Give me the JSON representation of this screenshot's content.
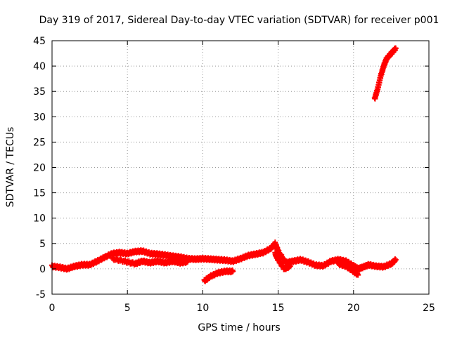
{
  "chart_data": {
    "type": "scatter",
    "title": "Day 319 of 2017, Sidereal Day-to-day VTEC variation (SDTVAR) for receiver p001",
    "xlabel": "GPS time / hours",
    "ylabel": "SDTVAR / TECUs",
    "xlim": [
      0,
      25
    ],
    "ylim": [
      -5,
      45
    ],
    "xticks": [
      "0",
      "5",
      "10",
      "15",
      "20",
      "25"
    ],
    "yticks": [
      "-5",
      "0",
      "5",
      "10",
      "15",
      "20",
      "25",
      "30",
      "35",
      "40",
      "45"
    ],
    "grid": true,
    "marker": "plus",
    "series": [
      {
        "color": "#ff0000",
        "segments": [
          [
            [
              0,
              0.5
            ],
            [
              0.5,
              0.3
            ],
            [
              1,
              0.0
            ],
            [
              1.5,
              0.5
            ],
            [
              2,
              0.8
            ],
            [
              2.5,
              0.8
            ],
            [
              3,
              1.5
            ],
            [
              3.5,
              2.3
            ],
            [
              4,
              3.0
            ],
            [
              4.5,
              3.2
            ],
            [
              5,
              3.0
            ],
            [
              5.5,
              3.4
            ],
            [
              6,
              3.5
            ],
            [
              6.5,
              3.0
            ],
            [
              7,
              2.9
            ],
            [
              7.5,
              2.7
            ],
            [
              8,
              2.5
            ],
            [
              8.5,
              2.3
            ],
            [
              9,
              2.0
            ],
            [
              9.5,
              1.9
            ],
            [
              10,
              2.0
            ],
            [
              10.5,
              1.9
            ],
            [
              11,
              1.8
            ],
            [
              11.5,
              1.7
            ],
            [
              12,
              1.5
            ],
            [
              12.5,
              2.0
            ],
            [
              13,
              2.6
            ],
            [
              13.5,
              2.9
            ],
            [
              14,
              3.2
            ],
            [
              14.5,
              4.0
            ],
            [
              14.8,
              5.0
            ],
            [
              15,
              3.5
            ],
            [
              15.5,
              1.2
            ],
            [
              16,
              1.5
            ],
            [
              16.5,
              1.8
            ],
            [
              17,
              1.3
            ],
            [
              17.5,
              0.7
            ],
            [
              18,
              0.6
            ],
            [
              18.5,
              1.5
            ],
            [
              19,
              1.8
            ],
            [
              19.5,
              1.5
            ],
            [
              20,
              0.6
            ],
            [
              20.3,
              0.0
            ],
            [
              20.6,
              0.3
            ],
            [
              21,
              0.8
            ],
            [
              21.5,
              0.5
            ],
            [
              22,
              0.4
            ],
            [
              22.5,
              1.0
            ],
            [
              22.8,
              1.8
            ]
          ],
          [
            [
              4,
              2.0
            ],
            [
              4.8,
              1.5
            ],
            [
              5.5,
              1.0
            ],
            [
              6,
              1.5
            ],
            [
              6.5,
              1.2
            ],
            [
              7,
              1.5
            ],
            [
              7.5,
              1.2
            ],
            [
              8,
              1.5
            ],
            [
              8.5,
              1.2
            ],
            [
              9,
              1.4
            ]
          ],
          [
            [
              10.1,
              -2.4
            ],
            [
              10.5,
              -1.5
            ],
            [
              11,
              -0.8
            ],
            [
              11.5,
              -0.5
            ],
            [
              12,
              -0.5
            ]
          ],
          [
            [
              14.8,
              3.0
            ],
            [
              15,
              1.8
            ],
            [
              15.4,
              0.0
            ],
            [
              15.8,
              0.5
            ]
          ],
          [
            [
              19,
              1.0
            ],
            [
              19.5,
              0.5
            ],
            [
              20,
              -0.5
            ],
            [
              20.3,
              -1.2
            ]
          ],
          [
            [
              21.4,
              33.5
            ],
            [
              21.6,
              35.5
            ],
            [
              21.8,
              38.0
            ],
            [
              22.0,
              40.0
            ],
            [
              22.2,
              41.5
            ],
            [
              22.5,
              42.5
            ],
            [
              22.8,
              43.5
            ]
          ]
        ]
      }
    ]
  }
}
